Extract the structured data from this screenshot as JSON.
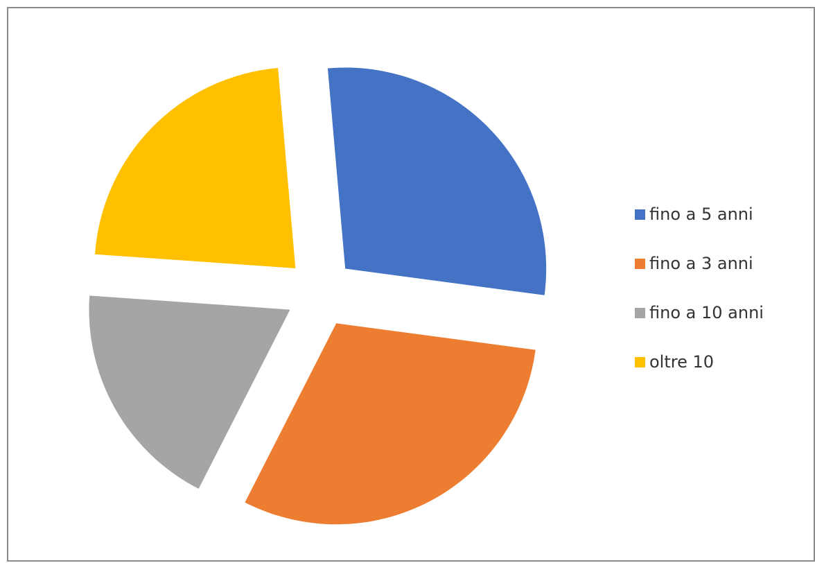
{
  "chart_data": {
    "type": "pie",
    "exploded": true,
    "start_angle_deg": -5,
    "legend_position": "right",
    "slices": [
      {
        "label": "fino a 5 anni",
        "value": 28.5,
        "color": "#4472C4"
      },
      {
        "label": "fino a 3 anni",
        "value": 30.4,
        "color": "#ED7D31"
      },
      {
        "label": "fino a 10 anni",
        "value": 18.6,
        "color": "#A5A5A5"
      },
      {
        "label": "oltre 10",
        "value": 22.5,
        "color": "#FFC000"
      }
    ]
  }
}
